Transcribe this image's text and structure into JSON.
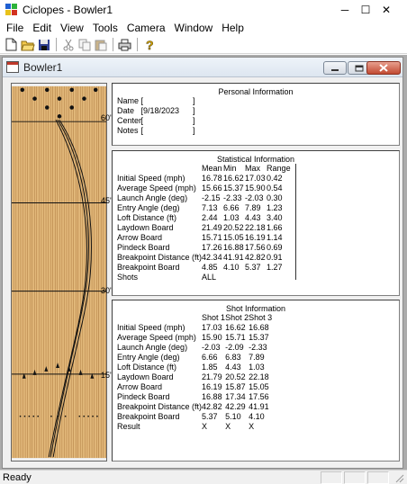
{
  "window": {
    "title": "Ciclopes - Bowler1",
    "minimize": "─",
    "maximize": "☐",
    "close": "✕"
  },
  "menu": [
    "File",
    "Edit",
    "View",
    "Tools",
    "Camera",
    "Window",
    "Help"
  ],
  "toolbar": {
    "icons": [
      "new-file-icon",
      "open-folder-icon",
      "save-icon",
      "cut-icon",
      "copy-icon",
      "paste-icon",
      "print-icon",
      "help-icon"
    ]
  },
  "child_window": {
    "title": "Bowler1"
  },
  "lane": {
    "distance_labels": [
      "60'",
      "45'",
      "30'",
      "15'"
    ]
  },
  "personal": {
    "title": "Personal Information",
    "fields": [
      {
        "label": "Name",
        "value": "[",
        "end": "]"
      },
      {
        "label": "Date",
        "value": "[9/18/2023",
        "end": "]"
      },
      {
        "label": "Center",
        "value": "[",
        "end": "]"
      },
      {
        "label": "Notes",
        "value": "[",
        "end": "]"
      }
    ]
  },
  "stats": {
    "title": "Statistical Information",
    "headers": [
      "",
      "Mean",
      "Min",
      "Max",
      "Range"
    ],
    "rows": [
      [
        "Initial Speed (mph)",
        "16.78",
        "16.62",
        "17.03",
        "0.42"
      ],
      [
        "Average Speed (mph)",
        "15.66",
        "15.37",
        "15.90",
        "0.54"
      ],
      [
        "Launch Angle (deg)",
        "-2.15",
        "-2.33",
        "-2.03",
        "0.30"
      ],
      [
        "Entry Angle (deg)",
        "7.13",
        "6.66",
        "7.89",
        "1.23"
      ],
      [
        "Loft Distance (ft)",
        "2.44",
        "1.03",
        "4.43",
        "3.40"
      ],
      [
        "Laydown Board",
        "21.49",
        "20.52",
        "22.18",
        "1.66"
      ],
      [
        "Arrow Board",
        "15.71",
        "15.05",
        "16.19",
        "1.14"
      ],
      [
        "Pindeck Board",
        "17.26",
        "16.88",
        "17.56",
        "0.69"
      ],
      [
        "Breakpoint Distance (ft)",
        "42.34",
        "41.91",
        "42.82",
        "0.91"
      ],
      [
        "Breakpoint Board",
        "4.85",
        "4.10",
        "5.37",
        "1.27"
      ],
      [
        "Shots",
        "ALL",
        "",
        "",
        ""
      ]
    ]
  },
  "shots": {
    "title": "Shot Information",
    "headers": [
      "",
      "Shot 1",
      "Shot 2",
      "Shot 3"
    ],
    "rows": [
      [
        "Initial Speed (mph)",
        "17.03",
        "16.62",
        "16.68"
      ],
      [
        "Average Speed (mph)",
        "15.90",
        "15.71",
        "15.37"
      ],
      [
        "Launch Angle (deg)",
        "-2.03",
        "-2.09",
        "-2.33"
      ],
      [
        "Entry Angle (deg)",
        "6.66",
        "6.83",
        "7.89"
      ],
      [
        "Loft Distance (ft)",
        "1.85",
        "4.43",
        "1.03"
      ],
      [
        "Laydown Board",
        "21.79",
        "20.52",
        "22.18"
      ],
      [
        "Arrow Board",
        "16.19",
        "15.87",
        "15.05"
      ],
      [
        "Pindeck Board",
        "16.88",
        "17.34",
        "17.56"
      ],
      [
        "Breakpoint Distance (ft)",
        "42.82",
        "42.29",
        "41.91"
      ],
      [
        "Breakpoint Board",
        "5.37",
        "5.10",
        "4.10"
      ],
      [
        "Result",
        "X",
        "X",
        "X"
      ]
    ]
  },
  "status": {
    "text": "Ready"
  },
  "colors": {
    "lane_wood": "#e2b87a",
    "lane_board_line": "#a9753b",
    "mdi_bg": "#ababab",
    "close_btn": "#c14a32"
  }
}
